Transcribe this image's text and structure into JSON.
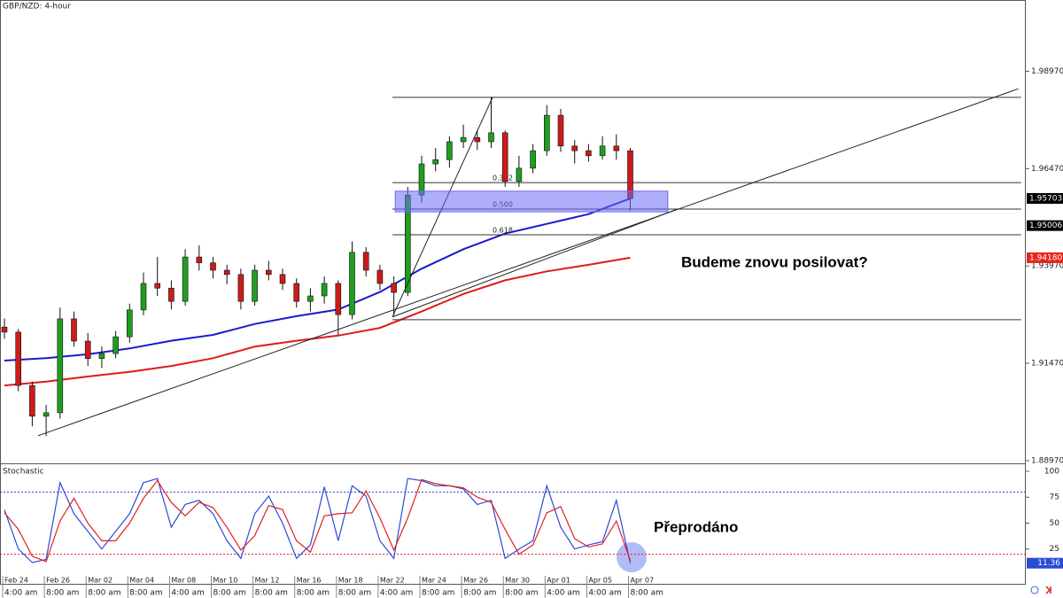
{
  "chart_data": [
    {
      "type": "candlestick",
      "title": "GBP/NZD: 4-hour",
      "categories": [
        "Feb 24",
        null,
        null,
        "Feb 26",
        null,
        null,
        "Mar 02",
        null,
        null,
        "Mar 04",
        null,
        null,
        "Mar 08",
        null,
        null,
        "Mar 10",
        null,
        null,
        "Mar 12",
        null,
        null,
        "Mar 16",
        null,
        null,
        "Mar 18",
        null,
        null,
        "Mar 22",
        null,
        null,
        "Mar 24",
        null,
        null,
        "Mar 26",
        null,
        null,
        "Mar 30",
        null,
        null,
        "Apr 01",
        null,
        null,
        "Apr 05",
        null,
        null,
        "Apr 07"
      ],
      "category_times": [
        "4:00 am",
        null,
        null,
        "8:00 am",
        null,
        null,
        "8:00 am",
        null,
        null,
        "8:00 am",
        null,
        null,
        "4:00 am",
        null,
        null,
        "8:00 am",
        null,
        null,
        "8:00 am",
        null,
        null,
        "8:00 am",
        null,
        null,
        "8:00 am",
        null,
        null,
        "4:00 am",
        null,
        null,
        "8:00 am",
        null,
        null,
        "8:00 am",
        null,
        null,
        "8:00 am",
        null,
        null,
        "4:00 am",
        null,
        null,
        "4:00 am",
        null,
        null,
        "8:00 am"
      ],
      "open": [
        1.924,
        1.9227,
        1.909,
        1.9011,
        1.902,
        1.9261,
        1.9204,
        1.9159,
        1.9172,
        1.9215,
        1.9284,
        1.9352,
        1.934,
        1.9306,
        1.942,
        1.9405,
        1.9386,
        1.9375,
        1.9306,
        1.9386,
        1.9375,
        1.9352,
        1.9306,
        1.932,
        1.9352,
        1.9272,
        1.9432,
        1.9386,
        1.9352,
        1.9329,
        1.9579,
        1.9659,
        1.967,
        1.9716,
        1.9727,
        1.9716,
        1.9739,
        1.9614,
        1.9648,
        1.9693,
        1.9784,
        1.9705,
        1.9693,
        1.968,
        1.9705,
        1.9693
      ],
      "high": [
        1.9262,
        1.9235,
        1.91,
        1.904,
        1.929,
        1.928,
        1.9225,
        1.919,
        1.923,
        1.93,
        1.938,
        1.942,
        1.936,
        1.944,
        1.945,
        1.942,
        1.94,
        1.939,
        1.94,
        1.941,
        1.939,
        1.9365,
        1.934,
        1.937,
        1.936,
        1.946,
        1.9445,
        1.94,
        1.937,
        1.96,
        1.968,
        1.97,
        1.973,
        1.976,
        1.9745,
        1.983,
        1.9745,
        1.968,
        1.971,
        1.981,
        1.98,
        1.972,
        1.971,
        1.973,
        1.9735,
        1.97
      ],
      "low": [
        1.921,
        1.9075,
        1.8985,
        1.896,
        1.9005,
        1.919,
        1.914,
        1.9135,
        1.916,
        1.92,
        1.927,
        1.932,
        1.9285,
        1.9295,
        1.9385,
        1.9365,
        1.935,
        1.9285,
        1.9295,
        1.936,
        1.9335,
        1.929,
        1.928,
        1.93,
        1.922,
        1.926,
        1.937,
        1.9335,
        1.927,
        1.932,
        1.956,
        1.964,
        1.965,
        1.97,
        1.9695,
        1.97,
        1.96,
        1.96,
        1.9635,
        1.968,
        1.969,
        1.966,
        1.9665,
        1.967,
        1.967,
        1.954
      ],
      "close": [
        1.9227,
        1.909,
        1.9011,
        1.902,
        1.9261,
        1.9204,
        1.9159,
        1.9172,
        1.9215,
        1.9284,
        1.9352,
        1.934,
        1.9306,
        1.942,
        1.9405,
        1.9386,
        1.9375,
        1.9306,
        1.9386,
        1.9375,
        1.9352,
        1.9306,
        1.932,
        1.9352,
        1.9272,
        1.9432,
        1.9386,
        1.9352,
        1.9329,
        1.9579,
        1.9659,
        1.967,
        1.9716,
        1.9727,
        1.9716,
        1.9739,
        1.9614,
        1.9648,
        1.9693,
        1.9784,
        1.9705,
        1.9693,
        1.968,
        1.9705,
        1.9693,
        1.957
      ],
      "up_color": "#1f9e1f",
      "down_color": "#cc1b1b",
      "series": [
        {
          "color": "#1a1acc",
          "x": [
            0,
            3,
            6,
            9,
            12,
            15,
            18,
            21,
            24,
            27,
            30,
            33,
            36,
            39,
            42,
            45
          ],
          "values": [
            1.9154,
            1.916,
            1.917,
            1.9185,
            1.9205,
            1.922,
            1.9248,
            1.9268,
            1.9285,
            1.933,
            1.939,
            1.944,
            1.948,
            1.9505,
            1.953,
            1.957
          ]
        },
        {
          "color": "#e01a1a",
          "x": [
            0,
            3,
            6,
            9,
            12,
            15,
            18,
            21,
            24,
            27,
            30,
            33,
            36,
            39,
            42,
            45
          ],
          "values": [
            1.909,
            1.91,
            1.9113,
            1.9125,
            1.914,
            1.916,
            1.919,
            1.9205,
            1.9218,
            1.9238,
            1.928,
            1.9325,
            1.936,
            1.9383,
            1.94,
            1.9418
          ]
        }
      ],
      "ylim": [
        1.889,
        2.008
      ],
      "yticks": [
        {
          "value": 1.8897,
          "label": "1.88970"
        },
        {
          "value": 1.9147,
          "label": "1.91470"
        },
        {
          "value": 1.9397,
          "label": "1.93970"
        },
        {
          "value": 1.9647,
          "label": "1.96470"
        },
        {
          "value": 1.9897,
          "label": "1.98970"
        }
      ],
      "price_tags": [
        {
          "value": 1.95703,
          "color": "#000000"
        },
        {
          "value": 1.95006,
          "color": "#000000"
        },
        {
          "value": 1.9418,
          "label": "1.94180",
          "color": "#e8241c"
        }
      ],
      "fib_x": [
        27.9,
        73.1
      ],
      "fib_lines": [
        {
          "value": 1.983
        },
        {
          "value": 1.9611,
          "label": "0.382"
        },
        {
          "value": 1.9543,
          "label": "0.500"
        },
        {
          "value": 1.9477,
          "label": "0.618"
        },
        {
          "value": 1.9259
        }
      ],
      "zone": {
        "x": [
          28.1,
          47.7
        ],
        "y": [
          1.9536,
          1.9589
        ],
        "color": "#6b6bf5"
      },
      "trendlines": [
        {
          "x": [
            2.42,
            72.9
          ],
          "y": [
            1.8961,
            1.9852
          ]
        },
        {
          "x": [
            27.9,
            48.4
          ],
          "y": [
            1.9266,
            1.9543
          ]
        },
        {
          "x": [
            27.9,
            35.1
          ],
          "y": [
            1.9266,
            1.983
          ]
        }
      ],
      "annotations": [
        "Budeme znovu posilovat?"
      ]
    },
    {
      "type": "line",
      "title": "Stochastic",
      "series": [
        {
          "color": "#2b4bd6",
          "values": [
            63,
            25,
            12,
            15,
            89,
            59,
            42,
            25,
            42,
            59,
            89,
            93,
            46,
            68,
            72,
            59,
            33,
            16,
            59,
            76,
            50,
            16,
            29,
            85,
            33,
            86,
            76,
            33,
            16,
            93,
            91,
            86,
            86,
            83,
            68,
            72,
            16,
            25,
            33,
            86,
            46,
            25,
            29,
            32,
            72,
            11.36
          ]
        },
        {
          "color": "#e02020",
          "values": [
            60,
            44,
            18,
            13,
            52,
            74,
            50,
            33,
            33,
            50,
            74,
            91,
            70,
            57,
            70,
            65,
            46,
            24,
            38,
            67,
            63,
            33,
            22,
            57,
            59,
            60,
            81,
            55,
            24,
            55,
            92,
            88,
            86,
            84,
            75,
            70,
            44,
            20,
            29,
            60,
            66,
            35,
            27,
            30,
            52,
            14
          ]
        }
      ],
      "levels": [
        {
          "value": 80,
          "color": "#3b3bd0"
        },
        {
          "value": 20,
          "color": "#e02020"
        }
      ],
      "ylim": [
        -9.4,
        106.8
      ],
      "yticks": [
        25,
        50,
        75,
        100
      ],
      "annotations": [
        "Přeprodáno"
      ]
    }
  ]
}
